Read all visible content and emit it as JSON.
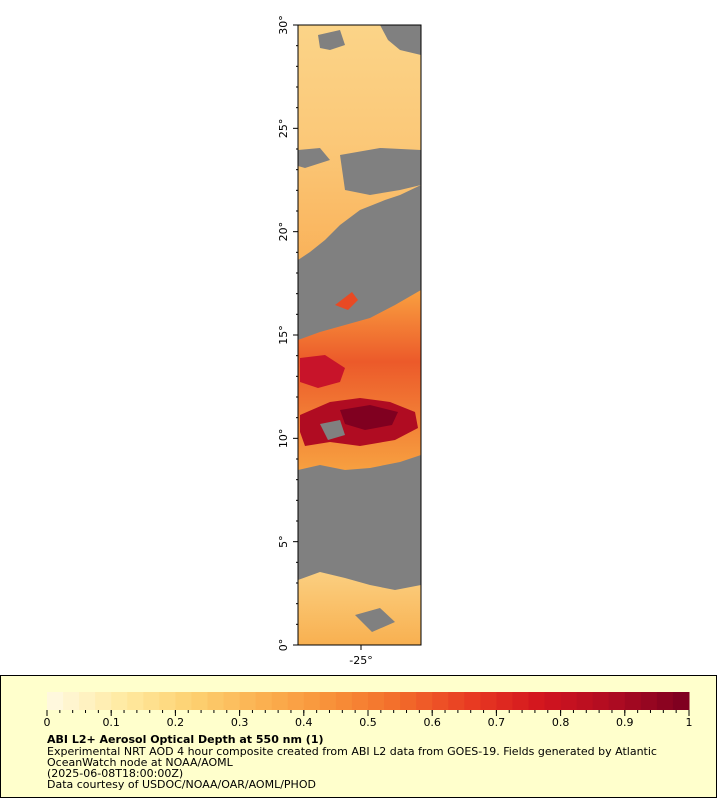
{
  "map": {
    "y_axis": {
      "ticks": [
        {
          "label": "0°",
          "value": 0
        },
        {
          "label": "5°",
          "value": 5
        },
        {
          "label": "10°",
          "value": 10
        },
        {
          "label": "15°",
          "value": 15
        },
        {
          "label": "20°",
          "value": 20
        },
        {
          "label": "25°",
          "value": 25
        },
        {
          "label": "30°",
          "value": 30
        }
      ],
      "range": [
        0,
        30
      ]
    },
    "x_axis": {
      "ticks": [
        {
          "label": "-25°",
          "value": -25
        }
      ]
    },
    "colors": {
      "no_data": "#808080",
      "low": "#fff2cc",
      "mid": "#f9a040",
      "high": "#c8142a",
      "max": "#800020"
    }
  },
  "colorbar": {
    "range": [
      0,
      1
    ],
    "labels": [
      "0",
      "0.1",
      "0.2",
      "0.3",
      "0.4",
      "0.5",
      "0.6",
      "0.7",
      "0.8",
      "0.9",
      "1"
    ],
    "stops": [
      "#fff8dd",
      "#ffeaa0",
      "#fdd070",
      "#fbb050",
      "#f89038",
      "#f26a2a",
      "#e83a22",
      "#d2141e",
      "#b00c22",
      "#800020"
    ]
  },
  "legend": {
    "title": "ABI L2+ Aerosol Optical Depth at 550 nm (1)",
    "line1": "Experimental NRT AOD 4 hour composite created from ABI L2 data from GOES-19. Fields generated by Atlantic",
    "line2": "OceanWatch node at NOAA/AOML",
    "line3": "(2025-06-08T18:00:00Z)",
    "line4": "Data courtesy of USDOC/NOAA/OAR/AOML/PHOD"
  }
}
